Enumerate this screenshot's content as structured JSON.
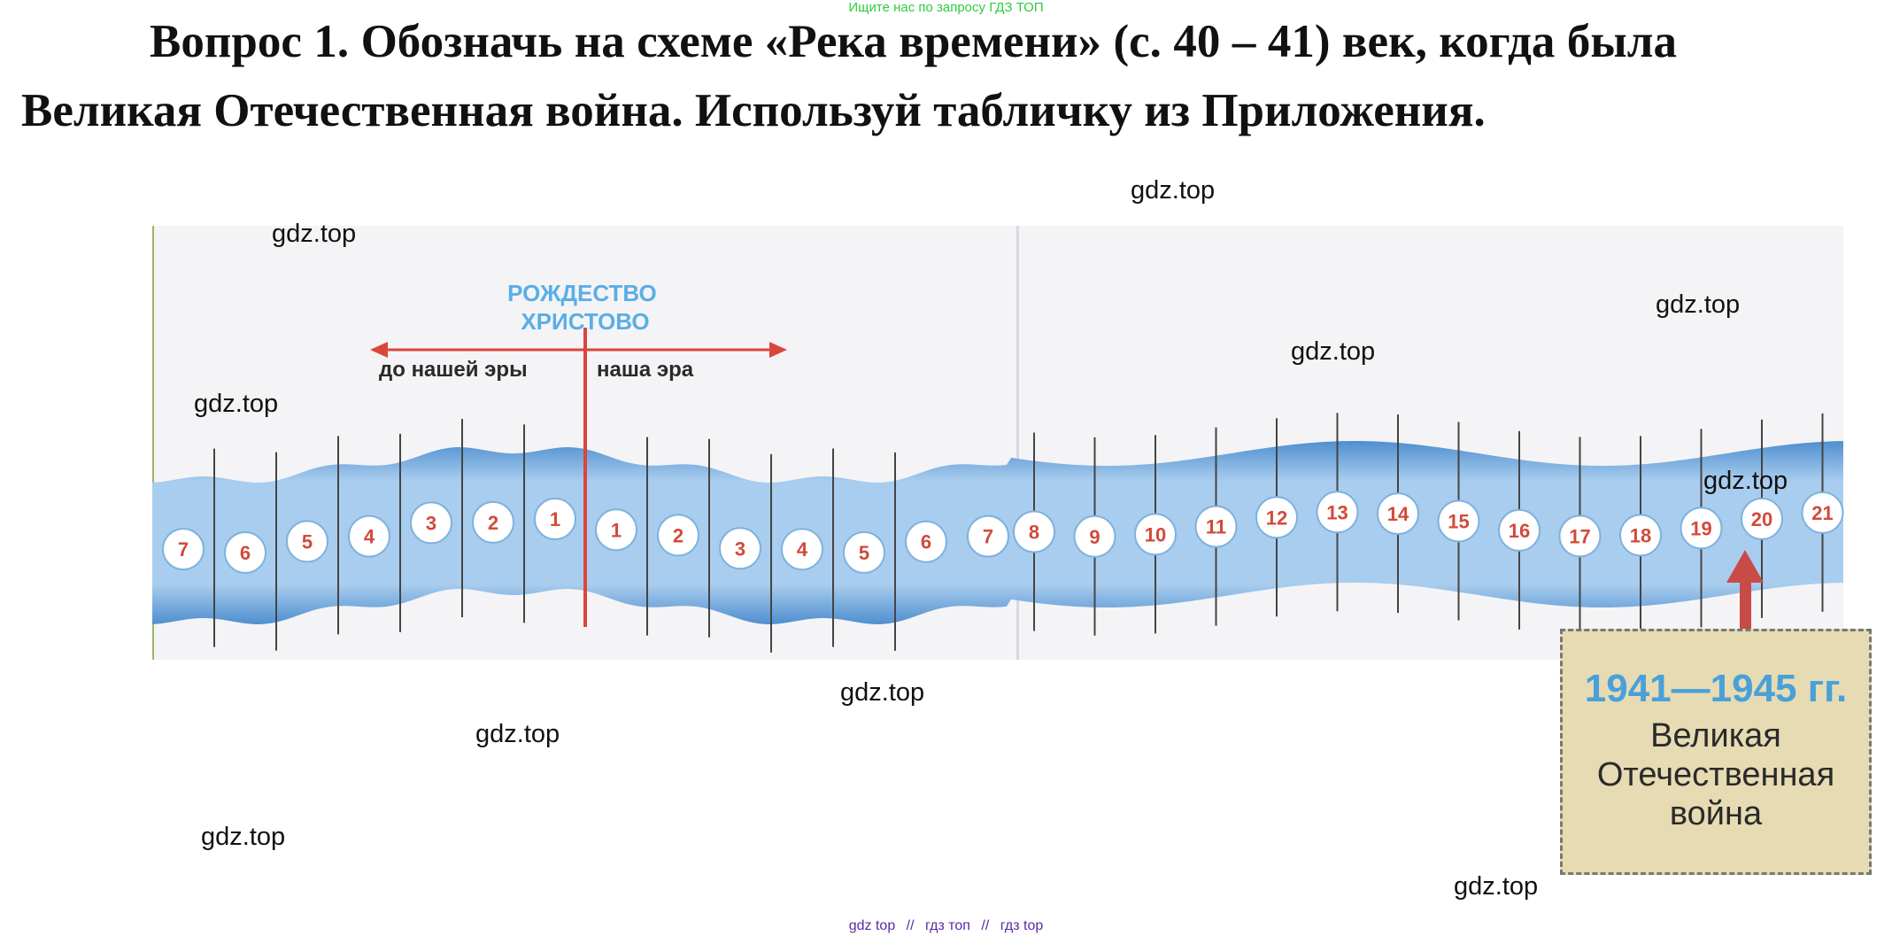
{
  "top_hint": "Ищите нас по запросу ГДЗ ТОП",
  "question": "Вопрос 1.  Обозначь на схеме «Река времени» (с. 40 – 41) век, когда была Великая Отечественная война. Используй табличку из Приложения.",
  "watermark": "gdz.top",
  "river": {
    "era_point": "РОЖДЕСТВО ХРИСТОВО",
    "era_point_lines": [
      "РОЖДЕСТВО",
      "ХРИСТОВО"
    ],
    "bc_label": "до нашей эры",
    "ad_label": "наша эра",
    "bc_centuries": [
      "7",
      "6",
      "5",
      "4",
      "3",
      "2",
      "1"
    ],
    "ad_centuries": [
      "1",
      "2",
      "3",
      "4",
      "5",
      "6",
      "7",
      "8",
      "9",
      "10",
      "11",
      "12",
      "13",
      "14",
      "15",
      "16",
      "17",
      "18",
      "19",
      "20",
      "21"
    ],
    "marked_century": "20",
    "colors": {
      "river_dark": "#4f8fcf",
      "river_light": "#a9cdee",
      "numeral": "#d24a3a",
      "arrow": "#c94b47",
      "era_title": "#5aaee6",
      "axis_line": "#d9473a"
    }
  },
  "note": {
    "years": "1941—1945 гг.",
    "event_lines": [
      "Великая",
      "Отечественная",
      "война"
    ]
  },
  "footer_links": [
    "gdz top",
    "//",
    "гдз топ",
    "//",
    "гдз top"
  ]
}
